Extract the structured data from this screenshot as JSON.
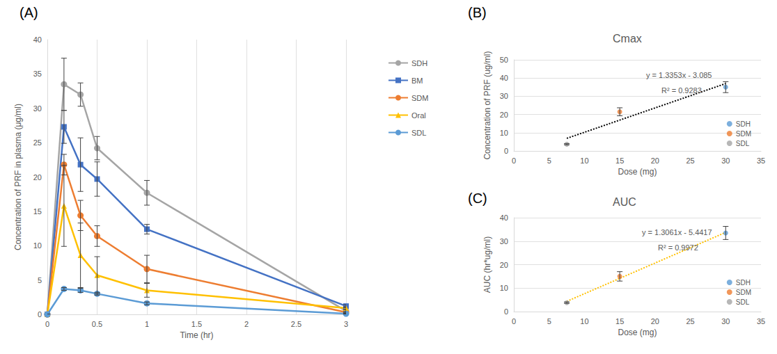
{
  "chart_data": [
    {
      "type": "line",
      "annotations": [
        "(A)"
      ],
      "x_label": "Time (hr)",
      "y_label": "Concentration of PRF in plasma (μg/ml)",
      "x": [
        0,
        0.167,
        0.333,
        0.5,
        1,
        3
      ],
      "xlim": [
        0,
        3
      ],
      "xticks": [
        0,
        0.5,
        1,
        1.5,
        2,
        2.5,
        3
      ],
      "ylim": [
        0,
        40
      ],
      "yticks": [
        0,
        5,
        10,
        15,
        20,
        25,
        30,
        35,
        40
      ],
      "grid": "x",
      "legend": "right",
      "series": [
        {
          "name": "SDH",
          "color": "#a5a5a5",
          "marker": "circle",
          "values": [
            0,
            33.5,
            32.0,
            24.2,
            17.7,
            0.5
          ],
          "errors": [
            0,
            3.8,
            1.7,
            1.7,
            1.8,
            0.2
          ]
        },
        {
          "name": "BM",
          "color": "#4472c4",
          "marker": "square",
          "values": [
            0,
            27.3,
            21.8,
            19.7,
            12.4,
            1.2
          ],
          "errors": [
            0,
            2.4,
            3.9,
            2.5,
            0.7,
            0.2
          ]
        },
        {
          "name": "SDM",
          "color": "#ed7d31",
          "marker": "circle",
          "values": [
            0,
            21.8,
            14.4,
            11.4,
            6.6,
            0.3
          ],
          "errors": [
            0,
            1.5,
            2.2,
            1.5,
            2.0,
            0.1
          ]
        },
        {
          "name": "Oral",
          "color": "#ffc000",
          "marker": "triangle",
          "values": [
            0,
            15.8,
            8.6,
            5.7,
            3.5,
            0.9
          ],
          "errors": [
            0,
            5.9,
            4.7,
            2.7,
            1.0,
            0.2
          ]
        },
        {
          "name": "SDL",
          "color": "#5b9bd5",
          "marker": "circle",
          "values": [
            0,
            3.7,
            3.5,
            3.0,
            1.6,
            0.1
          ],
          "errors": [
            0,
            0.2,
            0.3,
            0.2,
            0.2,
            0.05
          ]
        }
      ]
    },
    {
      "type": "scatter",
      "title": "Cmax",
      "annotations": [
        "(B)",
        "y = 1.3353x - 3.085",
        "R² = 0.9283"
      ],
      "x_label": "Dose (mg)",
      "y_label": "Concentration of PRF (ug/ml)",
      "xlim": [
        0,
        35
      ],
      "xticks": [
        0,
        5,
        10,
        15,
        20,
        25,
        30,
        35
      ],
      "ylim": [
        0,
        50
      ],
      "yticks": [
        0,
        10,
        20,
        30,
        40,
        50
      ],
      "grid": "y",
      "legend": "bottom right",
      "series": [
        {
          "name": "SDH",
          "color": "#5b9bd5",
          "marker": "circle",
          "x": [
            30
          ],
          "values": [
            35.0
          ],
          "errors": [
            3.0
          ]
        },
        {
          "name": "SDM",
          "color": "#ed7d31",
          "marker": "circle",
          "x": [
            15
          ],
          "values": [
            21.5
          ],
          "errors": [
            2.2
          ]
        },
        {
          "name": "SDL",
          "color": "#a5a5a5",
          "marker": "circle",
          "x": [
            7.5
          ],
          "values": [
            3.7
          ],
          "errors": [
            0.3
          ]
        }
      ],
      "trendline": {
        "x": [
          7.5,
          30
        ],
        "values": [
          6.93,
          36.97
        ],
        "color": "#000000",
        "line_style": "dotted"
      }
    },
    {
      "type": "scatter",
      "title": "AUC",
      "annotations": [
        "(C)",
        "y = 1.3061x - 5.4417",
        "R² = 0.9972"
      ],
      "x_label": "Dose (mg)",
      "y_label": "AUC (hr*ug/ml)",
      "xlim": [
        0,
        35
      ],
      "xticks": [
        0,
        5,
        10,
        15,
        20,
        25,
        30,
        35
      ],
      "ylim": [
        0,
        40
      ],
      "yticks": [
        0,
        10,
        20,
        30,
        40
      ],
      "grid": "y",
      "legend": "bottom right",
      "series": [
        {
          "name": "SDH",
          "color": "#5b9bd5",
          "marker": "circle",
          "x": [
            30
          ],
          "values": [
            33.5
          ],
          "errors": [
            2.8
          ]
        },
        {
          "name": "SDM",
          "color": "#ed7d31",
          "marker": "circle",
          "x": [
            15
          ],
          "values": [
            15.0
          ],
          "errors": [
            2.0
          ]
        },
        {
          "name": "SDL",
          "color": "#a5a5a5",
          "marker": "circle",
          "x": [
            7.5
          ],
          "values": [
            3.8
          ],
          "errors": [
            0.3
          ]
        }
      ],
      "trendline": {
        "x": [
          7.5,
          30
        ],
        "values": [
          4.35,
          33.74
        ],
        "color": "#ffc000",
        "line_style": "dotted"
      }
    }
  ]
}
